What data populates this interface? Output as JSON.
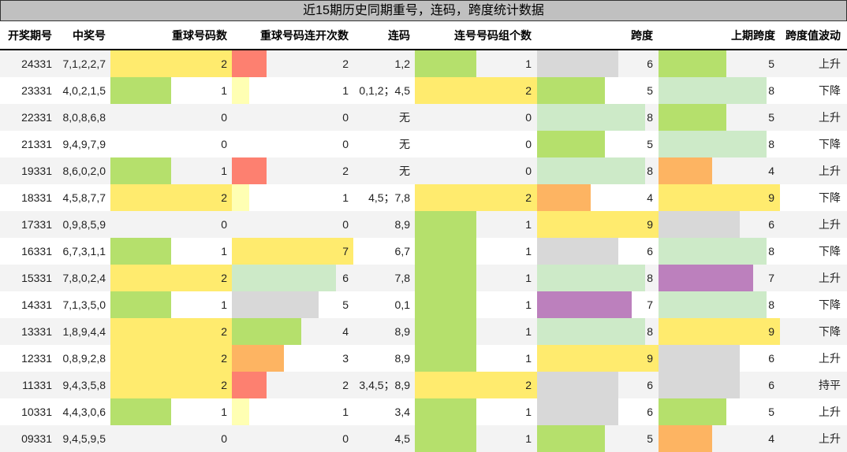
{
  "title": "近15期历史同期重号，连码，跨度统计数据",
  "headers": {
    "period": "开奖期号",
    "numbers": "中奖号",
    "repeat_count": "重球号码数",
    "repeat_streak": "重球号码连开次数",
    "consecutive": "连码",
    "consecutive_groups": "连号号码组个数",
    "span": "跨度",
    "prev_span": "上期跨度",
    "span_trend": "跨度值波动"
  },
  "colors": {
    "yellow": "#ffeb6e",
    "green": "#b5e06c",
    "light_green": "#cdeac8",
    "gray": "#d8d8d8",
    "red": "#fd8070",
    "orange": "#fdb462",
    "pale_yellow": "#ffffb3",
    "purple": "#bc80bd",
    "row_alt": "#f3f3f3",
    "title_bg": "#c0c0c0"
  },
  "rows": [
    {
      "period": "24331",
      "numbers": "7,1,2,2,7",
      "repeat_count": "2",
      "repeat_streak": "2",
      "consecutive": "1,2",
      "consecutive_groups": "1",
      "span": "6",
      "prev_span": "5",
      "span_trend": "上升"
    },
    {
      "period": "23331",
      "numbers": "4,0,2,1,5",
      "repeat_count": "1",
      "repeat_streak": "1",
      "consecutive": "0,1,2；4,5",
      "consecutive_groups": "2",
      "span": "5",
      "prev_span": "8",
      "span_trend": "下降"
    },
    {
      "period": "22331",
      "numbers": "8,0,8,6,8",
      "repeat_count": "0",
      "repeat_streak": "0",
      "consecutive": "无",
      "consecutive_groups": "0",
      "span": "8",
      "prev_span": "5",
      "span_trend": "上升"
    },
    {
      "period": "21331",
      "numbers": "9,4,9,7,9",
      "repeat_count": "0",
      "repeat_streak": "0",
      "consecutive": "无",
      "consecutive_groups": "0",
      "span": "5",
      "prev_span": "8",
      "span_trend": "下降"
    },
    {
      "period": "19331",
      "numbers": "8,6,0,2,0",
      "repeat_count": "1",
      "repeat_streak": "2",
      "consecutive": "无",
      "consecutive_groups": "0",
      "span": "8",
      "prev_span": "4",
      "span_trend": "上升"
    },
    {
      "period": "18331",
      "numbers": "4,5,8,7,7",
      "repeat_count": "2",
      "repeat_streak": "1",
      "consecutive": "4,5；7,8",
      "consecutive_groups": "2",
      "span": "4",
      "prev_span": "9",
      "span_trend": "下降"
    },
    {
      "period": "17331",
      "numbers": "0,9,8,5,9",
      "repeat_count": "0",
      "repeat_streak": "0",
      "consecutive": "8,9",
      "consecutive_groups": "1",
      "span": "9",
      "prev_span": "6",
      "span_trend": "上升"
    },
    {
      "period": "16331",
      "numbers": "6,7,3,1,1",
      "repeat_count": "1",
      "repeat_streak": "7",
      "consecutive": "6,7",
      "consecutive_groups": "1",
      "span": "6",
      "prev_span": "8",
      "span_trend": "下降"
    },
    {
      "period": "15331",
      "numbers": "7,8,0,2,4",
      "repeat_count": "2",
      "repeat_streak": "6",
      "consecutive": "7,8",
      "consecutive_groups": "1",
      "span": "8",
      "prev_span": "7",
      "span_trend": "上升"
    },
    {
      "period": "14331",
      "numbers": "7,1,3,5,0",
      "repeat_count": "1",
      "repeat_streak": "5",
      "consecutive": "0,1",
      "consecutive_groups": "1",
      "span": "7",
      "prev_span": "8",
      "span_trend": "下降"
    },
    {
      "period": "13331",
      "numbers": "1,8,9,4,4",
      "repeat_count": "2",
      "repeat_streak": "4",
      "consecutive": "8,9",
      "consecutive_groups": "1",
      "span": "8",
      "prev_span": "9",
      "span_trend": "下降"
    },
    {
      "period": "12331",
      "numbers": "0,8,9,2,8",
      "repeat_count": "2",
      "repeat_streak": "3",
      "consecutive": "8,9",
      "consecutive_groups": "1",
      "span": "9",
      "prev_span": "6",
      "span_trend": "上升"
    },
    {
      "period": "11331",
      "numbers": "9,4,3,5,8",
      "repeat_count": "2",
      "repeat_streak": "2",
      "consecutive": "3,4,5；8,9",
      "consecutive_groups": "2",
      "span": "6",
      "prev_span": "6",
      "span_trend": "持平"
    },
    {
      "period": "10331",
      "numbers": "4,4,3,0,6",
      "repeat_count": "1",
      "repeat_streak": "1",
      "consecutive": "3,4",
      "consecutive_groups": "1",
      "span": "6",
      "prev_span": "5",
      "span_trend": "上升"
    },
    {
      "period": "09331",
      "numbers": "9,4,5,9,5",
      "repeat_count": "0",
      "repeat_streak": "0",
      "consecutive": "4,5",
      "consecutive_groups": "1",
      "span": "5",
      "prev_span": "4",
      "span_trend": "上升"
    }
  ]
}
